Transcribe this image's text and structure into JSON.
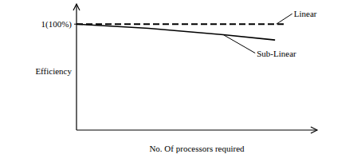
{
  "chart_data": {
    "type": "line",
    "y_label": "Efficiency",
    "x_label": "No. Of processors required",
    "x": [
      0,
      3,
      6.1,
      8.25,
      8.7
    ],
    "series": [
      {
        "name": "Linear",
        "color": "#000000",
        "line_style": "dashed",
        "values": [
          1,
          1,
          1,
          1,
          1
        ]
      },
      {
        "name": "Sub-Linear",
        "color": "#000000",
        "line_style": "solid",
        "values": [
          1,
          0.96,
          0.9,
          0.85,
          null
        ]
      }
    ],
    "xlim": [
      0,
      10
    ],
    "ylim": [
      0,
      1.19
    ],
    "xticks": [],
    "yticks": [
      {
        "value": 1,
        "label": "1(100%)"
      }
    ],
    "tick_labels": "y",
    "grid": false
  }
}
